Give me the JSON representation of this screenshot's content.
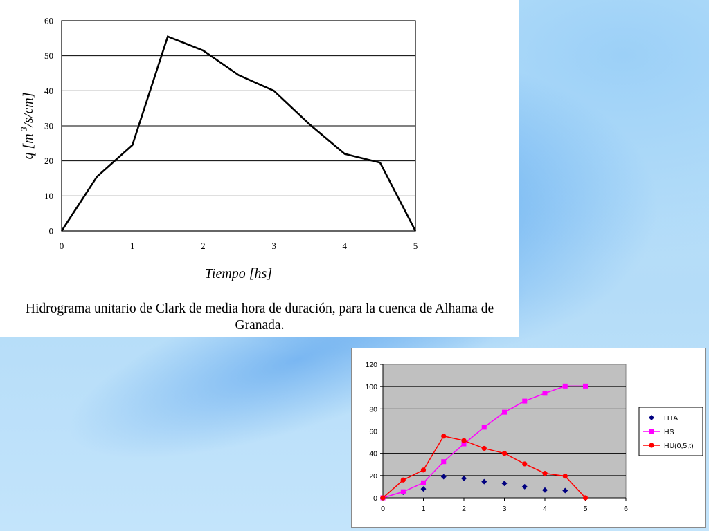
{
  "caption": {
    "line1": "Hidrograma unitario de Clark de media hora de duración, para la cuenca de Alhama de",
    "line2": "Granada."
  },
  "chart_data": [
    {
      "type": "line",
      "title": "",
      "xlabel": "Tiempo [hs]",
      "ylabel_main": "q [m",
      "ylabel_sup": "3",
      "ylabel_tail": "/s/cm]",
      "xlim": [
        0,
        5
      ],
      "ylim": [
        0,
        60
      ],
      "xticks": [
        "0",
        "1",
        "2",
        "3",
        "4",
        "5"
      ],
      "yticks": [
        "0",
        "10",
        "20",
        "30",
        "40",
        "50",
        "60"
      ],
      "grid": "horizontal",
      "series": [
        {
          "x": [
            0,
            0.5,
            1.0,
            1.5,
            2.0,
            2.5,
            3.0,
            3.5,
            4.0,
            4.5,
            5.0
          ],
          "values": [
            0,
            15.5,
            24.5,
            55.5,
            51.5,
            44.5,
            40,
            30.5,
            22,
            19.5,
            0
          ]
        }
      ]
    },
    {
      "type": "line",
      "title": "",
      "xlim": [
        0,
        6
      ],
      "ylim": [
        0,
        120
      ],
      "xticks": [
        "0",
        "1",
        "2",
        "3",
        "4",
        "5",
        "6"
      ],
      "yticks": [
        "0",
        "20",
        "40",
        "60",
        "80",
        "100",
        "120"
      ],
      "grid": "horizontal",
      "plot_background": "#c0c0c0",
      "legend_position": "right",
      "series": [
        {
          "name": "HTA",
          "color": "#000080",
          "marker": "diamond",
          "line": false,
          "x": [
            0,
            0.5,
            1.0,
            1.5,
            2.0,
            2.5,
            3.0,
            3.5,
            4.0,
            4.5
          ],
          "values": [
            0,
            5,
            8,
            19,
            17.5,
            14.5,
            13,
            10,
            7,
            6.5
          ]
        },
        {
          "name": "HS",
          "color": "#ff00ff",
          "marker": "square",
          "line": true,
          "x": [
            0,
            0.5,
            1.0,
            1.5,
            2.0,
            2.5,
            3.0,
            3.5,
            4.0,
            4.5,
            5.0
          ],
          "values": [
            0,
            5.5,
            13.5,
            32.5,
            48.5,
            63.5,
            77,
            87,
            94,
            100.5,
            100.5
          ]
        },
        {
          "name": "HU(0,5,t)",
          "color": "#ff0000",
          "marker": "circle",
          "line": true,
          "x": [
            0,
            0.5,
            1.0,
            1.5,
            2.0,
            2.5,
            3.0,
            3.5,
            4.0,
            4.5,
            5.0
          ],
          "values": [
            0,
            16,
            25,
            55.5,
            51.5,
            44.5,
            40,
            30.5,
            22,
            19.5,
            0
          ]
        }
      ]
    }
  ]
}
